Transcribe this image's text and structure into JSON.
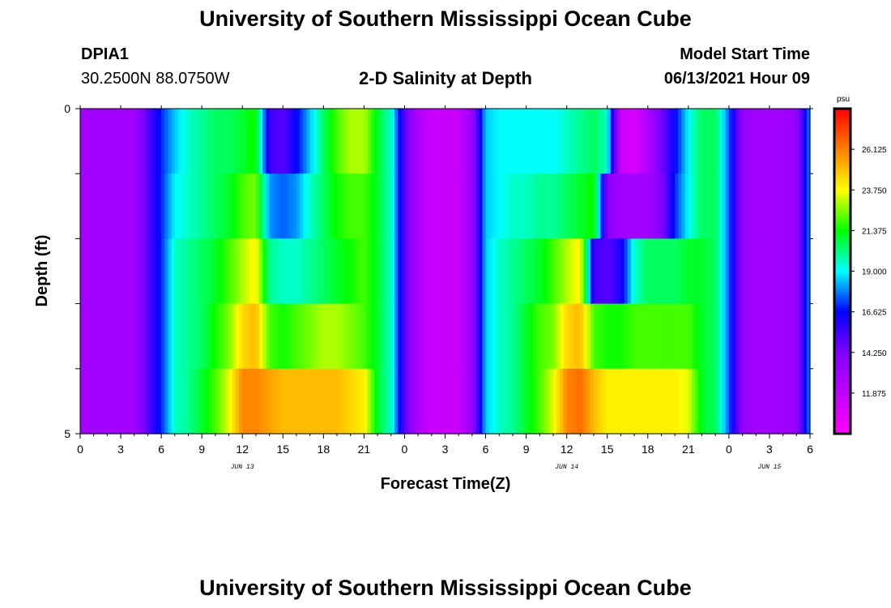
{
  "header": {
    "title": "University of Southern Mississippi Ocean Cube",
    "station": "DPIA1",
    "coords": "30.2500N  88.0750W",
    "subtitle": "2-D Salinity at Depth",
    "model_label": "Model Start Time",
    "model_time": "06/13/2021 Hour 09"
  },
  "footer": {
    "title": "University of Southern Mississippi Ocean Cube"
  },
  "colors": {
    "ramp": [
      "#ff00ff",
      "#c000ff",
      "#8000ff",
      "#0000ff",
      "#00ffff",
      "#00ff00",
      "#ffff00",
      "#ff8000",
      "#ff0000"
    ]
  },
  "chart_data": {
    "type": "heatmap",
    "title": "2-D Salinity at Depth",
    "xlabel": "Forecast Time(Z)",
    "ylabel": "Depth (ft)",
    "x_hours": [
      0,
      1,
      2,
      3,
      4,
      5,
      6,
      7,
      8,
      9,
      10,
      11,
      12,
      13,
      14,
      15,
      16,
      17,
      18,
      19,
      20,
      21,
      22,
      23,
      24,
      25,
      26,
      27,
      28,
      29,
      30,
      31,
      32,
      33,
      34,
      35,
      36,
      37,
      38,
      39,
      40,
      41,
      42,
      43,
      44,
      45,
      46,
      47,
      48,
      49,
      50,
      51,
      52,
      53,
      54
    ],
    "xlim": [
      0,
      54
    ],
    "x_tick_labels": [
      "0",
      "3",
      "6",
      "9",
      "12",
      "15",
      "18",
      "21",
      "0",
      "3",
      "6",
      "9",
      "12",
      "15",
      "18",
      "21",
      "0",
      "3",
      "6"
    ],
    "x_tick_hours": [
      0,
      3,
      6,
      9,
      12,
      15,
      18,
      21,
      24,
      27,
      30,
      33,
      36,
      39,
      42,
      45,
      48,
      51,
      54
    ],
    "day_labels": [
      {
        "label": "JUN 13",
        "hour": 12
      },
      {
        "label": "JUN 14",
        "hour": 36
      },
      {
        "label": "JUN 15",
        "hour": 51
      }
    ],
    "y_tick_labels": [
      "0",
      "5"
    ],
    "ylim": [
      0,
      5
    ],
    "depth_levels_ft": [
      0.5,
      1.5,
      2.5,
      3.5,
      4.5
    ],
    "z_range": [
      9.5,
      28.5
    ],
    "psu": [
      [
        13,
        13,
        13,
        13,
        13,
        15,
        17,
        18.5,
        19.5,
        20,
        20.5,
        20.5,
        21,
        21.5,
        15.5,
        15,
        16.5,
        18.5,
        20.5,
        22,
        23,
        23,
        21,
        19.5,
        15,
        12.5,
        11.5,
        11.5,
        11.5,
        13.5,
        18.5,
        19,
        19,
        19,
        19,
        19,
        19.5,
        20,
        20.5,
        19.5,
        11.5,
        11,
        12.5,
        14.5,
        16.5,
        19,
        20.5,
        20.5,
        17.5,
        13.5,
        13,
        13,
        13,
        13.5,
        18
      ],
      [
        13,
        13,
        13,
        13,
        13,
        15,
        17,
        19,
        19.5,
        20,
        20.5,
        21,
        22,
        22.5,
        18,
        17.5,
        18,
        19.5,
        20.5,
        21.5,
        22,
        22,
        21,
        19.5,
        15,
        12.5,
        11.5,
        11.5,
        11.5,
        13.5,
        18.5,
        19,
        19.5,
        19.5,
        20,
        20,
        20.5,
        21,
        21.5,
        14,
        13,
        13,
        13,
        14,
        17,
        19,
        20.5,
        20.5,
        17.5,
        13.5,
        13,
        13,
        13,
        13.5,
        18
      ],
      [
        13,
        13,
        13,
        13,
        13,
        15,
        17,
        19.5,
        20,
        20.5,
        21,
        22,
        23,
        24,
        20,
        19.5,
        19.5,
        20,
        20.5,
        21,
        21.5,
        22,
        21,
        19.5,
        15,
        12.5,
        11.5,
        11.5,
        11.5,
        13.5,
        18.5,
        19.5,
        20,
        20.5,
        21,
        22,
        23,
        24,
        15.5,
        15,
        16,
        19.5,
        20.5,
        20.5,
        20.5,
        21,
        21,
        20.5,
        17.5,
        13.5,
        13,
        13,
        13,
        13.5,
        18
      ],
      [
        13,
        13,
        13,
        13,
        13,
        15,
        17,
        19.5,
        20,
        20.5,
        21.5,
        22.5,
        24.5,
        25,
        22,
        21.5,
        22,
        22.5,
        23,
        23,
        22.5,
        22,
        21,
        19.5,
        15,
        12.5,
        11.5,
        11.5,
        11.5,
        13.5,
        18.5,
        19.5,
        20,
        21,
        22,
        22.5,
        24.5,
        25,
        22,
        21.5,
        21.5,
        22,
        22,
        22,
        22,
        22,
        21,
        20.5,
        17.5,
        13.5,
        13,
        13,
        13,
        13.5,
        18
      ],
      [
        13,
        13,
        13,
        13,
        13,
        15,
        17,
        19.5,
        20,
        21,
        22,
        23.5,
        26,
        26,
        25.5,
        25,
        25,
        25,
        25,
        25,
        24.5,
        24,
        21,
        19.5,
        15,
        12.5,
        11.5,
        11.5,
        11.5,
        13.5,
        18.5,
        19.5,
        20,
        21,
        22,
        23.5,
        26,
        26.5,
        25,
        24,
        24,
        24,
        24,
        24,
        24,
        23.5,
        21,
        20.5,
        17.5,
        13.5,
        13,
        13,
        13,
        13.5,
        18
      ]
    ]
  },
  "colorbar": {
    "unit": "psu",
    "min": 9.5,
    "max": 28.5,
    "ticks": [
      "26.125",
      "23.750",
      "21.375",
      "19.000",
      "16.625",
      "14.250",
      "11.875"
    ]
  }
}
